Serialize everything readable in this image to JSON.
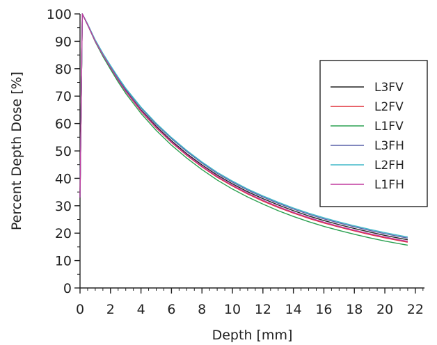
{
  "chart_data": {
    "type": "line",
    "xlabel": "Depth [mm]",
    "ylabel": "Percent Depth Dose [%]",
    "xlim": [
      0,
      22.6
    ],
    "ylim": [
      0,
      100
    ],
    "x_ticks": [
      0,
      2,
      4,
      6,
      8,
      10,
      12,
      14,
      16,
      18,
      20,
      22
    ],
    "x_minor_step": 0.5,
    "y_ticks": [
      0,
      10,
      20,
      30,
      40,
      50,
      60,
      70,
      80,
      90,
      100
    ],
    "y_minor_step": 5,
    "grid": false,
    "legend_position": "right",
    "x": [
      0,
      0.15,
      0.5,
      1,
      1.5,
      2,
      2.5,
      3,
      4,
      5,
      6,
      7,
      8,
      9,
      10,
      11,
      12,
      13,
      14,
      15,
      16,
      17,
      18,
      19,
      20,
      21,
      21.5
    ],
    "series": [
      {
        "name": "L3FV",
        "color": "#222222",
        "values": [
          33,
          100,
          96,
          90,
          85,
          80.5,
          76,
          72,
          65,
          59,
          53.7,
          49,
          44.9,
          41.2,
          38,
          35.1,
          32.6,
          30.3,
          28.2,
          26.3,
          24.6,
          23.1,
          21.7,
          20.4,
          19.2,
          18.1,
          17.6
        ]
      },
      {
        "name": "L2FV",
        "color": "#e0303a",
        "values": [
          33,
          100,
          96,
          90,
          85,
          80.3,
          75.8,
          71.7,
          64.5,
          58.4,
          53.1,
          48.4,
          44.2,
          40.4,
          37.2,
          34.3,
          31.7,
          29.4,
          27.3,
          25.4,
          23.7,
          22.2,
          20.8,
          19.5,
          18.3,
          17.2,
          16.7
        ]
      },
      {
        "name": "L1FV",
        "color": "#2aa050",
        "values": [
          33,
          100,
          96,
          89.8,
          84.5,
          79.8,
          75.2,
          71,
          63.7,
          57.5,
          52.1,
          47.4,
          43.2,
          39.4,
          36.1,
          33.2,
          30.6,
          28.2,
          26.1,
          24.2,
          22.5,
          21,
          19.6,
          18.3,
          17.1,
          16.1,
          15.6
        ]
      },
      {
        "name": "L3FH",
        "color": "#5860a8",
        "values": [
          33,
          100,
          96.2,
          90.3,
          85.4,
          81,
          76.6,
          72.6,
          65.7,
          59.7,
          54.5,
          49.8,
          45.6,
          41.8,
          38.6,
          35.7,
          33.2,
          30.9,
          28.8,
          26.9,
          25.2,
          23.7,
          22.3,
          21,
          19.8,
          18.7,
          18.2
        ]
      },
      {
        "name": "L2FH",
        "color": "#40b8c8",
        "values": [
          33,
          100,
          96.3,
          90.5,
          85.6,
          81.2,
          76.9,
          72.9,
          66,
          60.1,
          54.9,
          50.2,
          46,
          42.2,
          39,
          36.1,
          33.6,
          31.3,
          29.2,
          27.3,
          25.6,
          24.1,
          22.7,
          21.4,
          20.2,
          19.1,
          18.6
        ]
      },
      {
        "name": "L1FH",
        "color": "#c03a9e",
        "values": [
          33,
          100,
          96,
          90,
          85,
          80.4,
          75.9,
          71.8,
          64.7,
          58.6,
          53.3,
          48.6,
          44.4,
          40.7,
          37.5,
          34.6,
          32,
          29.7,
          27.6,
          25.7,
          24,
          22.5,
          21.1,
          19.8,
          18.6,
          17.5,
          17
        ]
      }
    ]
  }
}
